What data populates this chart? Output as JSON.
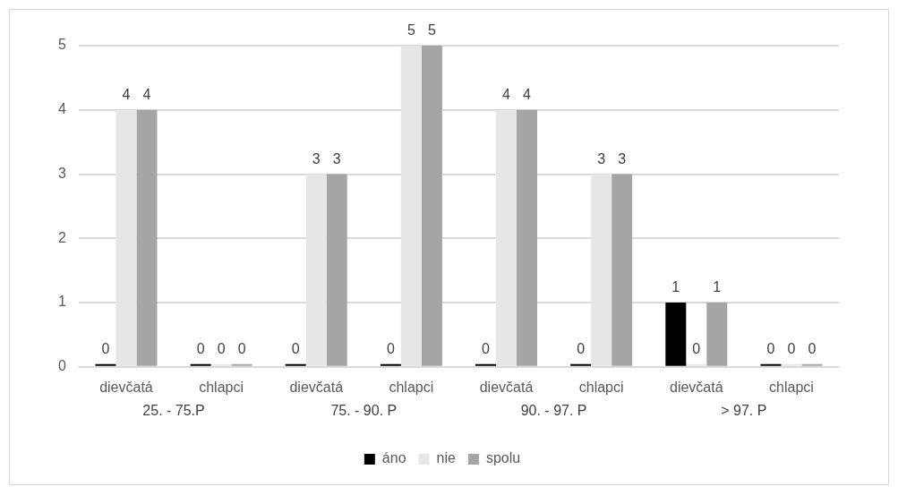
{
  "chart_data": {
    "type": "bar",
    "categories": [
      "dievčatá",
      "chlapci",
      "dievčatá",
      "chlapci",
      "dievčatá",
      "chlapci",
      "dievčatá",
      "chlapci"
    ],
    "series": [
      {
        "name": "áno",
        "color": "#000000",
        "values": [
          0,
          0,
          0,
          0,
          0,
          0,
          1,
          0
        ]
      },
      {
        "name": "nie",
        "color": "#e6e6e6",
        "values": [
          4,
          0,
          3,
          5,
          4,
          3,
          0,
          0
        ]
      },
      {
        "name": "spolu",
        "color": "#a5a5a5",
        "values": [
          4,
          0,
          3,
          5,
          4,
          3,
          1,
          0
        ]
      }
    ],
    "annotations": [
      "25. - 75.P",
      "75. - 90. P",
      "90. - 97. P",
      "> 97. P"
    ],
    "ylim": [
      0,
      5
    ],
    "yticks": [
      0,
      1,
      2,
      3,
      4,
      5
    ],
    "grid": "y",
    "legend": "bottom",
    "data_labels": true
  }
}
